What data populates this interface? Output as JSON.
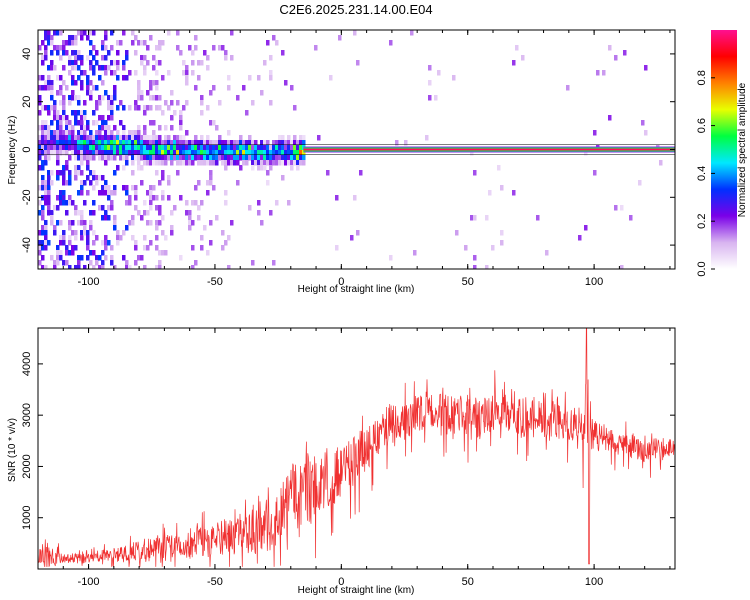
{
  "title": "C2E6.2025.231.14.00.E04",
  "chart_data": [
    {
      "type": "heatmap",
      "xlabel": "Height of straight line (km)",
      "ylabel": "Frequency (Hz)",
      "xlim": [
        -120,
        132
      ],
      "ylim": [
        -50,
        50
      ],
      "xticks": [
        -100,
        -50,
        0,
        50,
        100
      ],
      "yticks": [
        -40,
        -20,
        0,
        20,
        40
      ],
      "colorbar": {
        "label": "Normalized spectral amplitude",
        "range": [
          0,
          1
        ],
        "ticks": [
          0.0,
          0.2,
          0.4,
          0.6,
          0.8
        ],
        "tick_labels": [
          "0.0",
          "0.2",
          "0.4",
          "0.6",
          "0.8"
        ],
        "colors": [
          "#ffffff",
          "#d8b4f0",
          "#7a00e8",
          "#0030ff",
          "#00e8ff",
          "#00ff40",
          "#e8ff00",
          "#ff8000",
          "#ff0000",
          "#ff1090"
        ]
      },
      "ridge": {
        "x": [
          -120,
          -110,
          -100,
          -90,
          -80,
          -70,
          -60,
          -50,
          -40,
          -30,
          -20,
          -15,
          0,
          40,
          95,
          132
        ],
        "center_hz": [
          3,
          4,
          3,
          3,
          2,
          1,
          0,
          0,
          1,
          -1,
          0,
          0,
          0,
          0,
          0,
          0
        ],
        "strength": [
          0.3,
          0.35,
          0.5,
          0.6,
          0.55,
          0.55,
          0.55,
          0.5,
          0.55,
          0.5,
          0.55,
          0.9,
          0.95,
          0.95,
          0.95,
          0.95
        ]
      }
    },
    {
      "type": "line",
      "xlabel": "Height of straight line (km)",
      "ylabel": "SNR (10 * v/v)",
      "xlim": [
        -120,
        132
      ],
      "ylim": [
        0,
        4700
      ],
      "xticks": [
        -100,
        -50,
        0,
        50,
        100
      ],
      "yticks": [
        1000,
        2000,
        3000,
        4000
      ],
      "color": "#f03030",
      "envelope": {
        "x": [
          -120,
          -117,
          -110,
          -100,
          -90,
          -80,
          -70,
          -60,
          -50,
          -40,
          -30,
          -25,
          -20,
          -15,
          -10,
          -5,
          0,
          5,
          10,
          15,
          20,
          25,
          30,
          35,
          40,
          45,
          50,
          55,
          60,
          65,
          70,
          75,
          80,
          85,
          90,
          95,
          97,
          100,
          105,
          110,
          115,
          120,
          125,
          132
        ],
        "mean": [
          300,
          350,
          220,
          240,
          300,
          380,
          480,
          560,
          650,
          780,
          950,
          1150,
          1500,
          1700,
          1800,
          1900,
          2000,
          2200,
          2500,
          2700,
          2900,
          3000,
          3100,
          3150,
          3100,
          3000,
          3050,
          3000,
          3100,
          3200,
          3100,
          3050,
          3000,
          2950,
          2800,
          2900,
          3000,
          2650,
          2600,
          2500,
          2450,
          2300,
          2400,
          2350
        ],
        "spread": [
          250,
          500,
          150,
          180,
          250,
          350,
          450,
          500,
          550,
          700,
          900,
          1000,
          1100,
          1200,
          1100,
          1000,
          900,
          850,
          800,
          800,
          750,
          700,
          600,
          550,
          650,
          750,
          750,
          800,
          750,
          800,
          700,
          700,
          700,
          650,
          650,
          900,
          1400,
          500,
          450,
          400,
          400,
          350,
          400,
          350
        ]
      },
      "annotations": {
        "spike_max": {
          "x": 97,
          "y": 4700
        },
        "dip_min": {
          "x": 98,
          "y": 100
        }
      }
    }
  ]
}
